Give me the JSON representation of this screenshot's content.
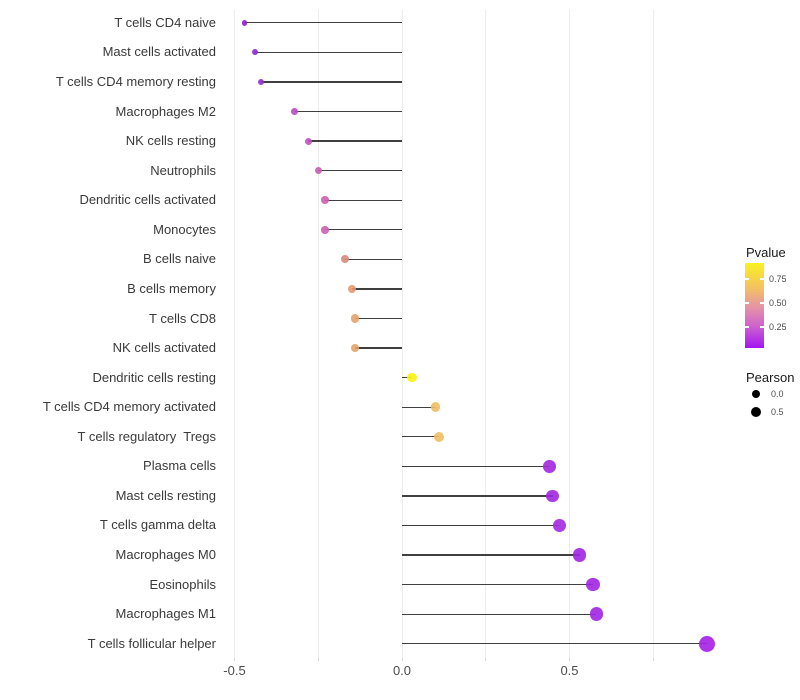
{
  "chart_data": {
    "type": "lollipop",
    "orientation": "horizontal",
    "xlabel": "",
    "ylabel": "",
    "xlim": [
      -0.55,
      0.99
    ],
    "x_tick_labels": [
      "-0.5",
      "0.0",
      "0.5"
    ],
    "x_tick_values": [
      -0.5,
      0.0,
      0.5
    ],
    "x_gridline_values": [
      -0.5,
      -0.25,
      0.0,
      0.25,
      0.5,
      0.75
    ],
    "grid": true,
    "series_encoding": {
      "x": "pearson",
      "dot_color": "pvalue",
      "dot_size": "pearson"
    },
    "rows": [
      {
        "label": "T cells CD4 naive",
        "pearson": -0.47,
        "color": "#8820D2"
      },
      {
        "label": "Mast cells activated",
        "pearson": -0.44,
        "color": "#8E28D1"
      },
      {
        "label": "T cells CD4 memory resting",
        "pearson": -0.42,
        "color": "#9431CE"
      },
      {
        "label": "Macrophages M2",
        "pearson": -0.32,
        "color": "#B94BC6"
      },
      {
        "label": "NK cells resting",
        "pearson": -0.28,
        "color": "#BF53BF"
      },
      {
        "label": "Neutrophils",
        "pearson": -0.25,
        "color": "#C75CB3"
      },
      {
        "label": "Dendritic cells activated",
        "pearson": -0.23,
        "color": "#CB61AE"
      },
      {
        "label": "Monocytes",
        "pearson": -0.23,
        "color": "#CB61AE"
      },
      {
        "label": "B cells naive",
        "pearson": -0.17,
        "color": "#D98A7D"
      },
      {
        "label": "B cells memory",
        "pearson": -0.15,
        "color": "#E29A71"
      },
      {
        "label": "T cells CD8",
        "pearson": -0.14,
        "color": "#E6A36C"
      },
      {
        "label": "NK cells activated",
        "pearson": -0.14,
        "color": "#E6A36C"
      },
      {
        "label": "Dendritic cells resting",
        "pearson": 0.03,
        "color": "#F8F311"
      },
      {
        "label": "T cells CD4 memory activated",
        "pearson": 0.1,
        "color": "#EFBE62"
      },
      {
        "label": "T cells regulatory  Tregs",
        "pearson": 0.11,
        "color": "#EFBE62"
      },
      {
        "label": "Plasma cells",
        "pearson": 0.44,
        "color": "#A227DF"
      },
      {
        "label": "Mast cells resting",
        "pearson": 0.45,
        "color": "#A227DF"
      },
      {
        "label": "T cells gamma delta",
        "pearson": 0.47,
        "color": "#A429E1"
      },
      {
        "label": "Macrophages M0",
        "pearson": 0.53,
        "color": "#A124E3"
      },
      {
        "label": "Eosinophils",
        "pearson": 0.57,
        "color": "#A124E3"
      },
      {
        "label": "Macrophages M1",
        "pearson": 0.58,
        "color": "#A124E3"
      },
      {
        "label": "T cells follicular helper",
        "pearson": 0.91,
        "color": "#A51FE6"
      }
    ]
  },
  "legend": {
    "pvalue": {
      "title": "Pvalue",
      "tick_labels": [
        "0.75",
        "0.50",
        "0.25"
      ],
      "gradient_top_to_bottom": [
        "#F9F121",
        "#F3C45F",
        "#E593A6",
        "#CB5ED1",
        "#A315F1"
      ]
    },
    "pearson": {
      "title": "Pearson",
      "items": [
        {
          "label": "0.0",
          "radius": 4
        },
        {
          "label": "0.5",
          "radius": 5
        }
      ]
    }
  }
}
